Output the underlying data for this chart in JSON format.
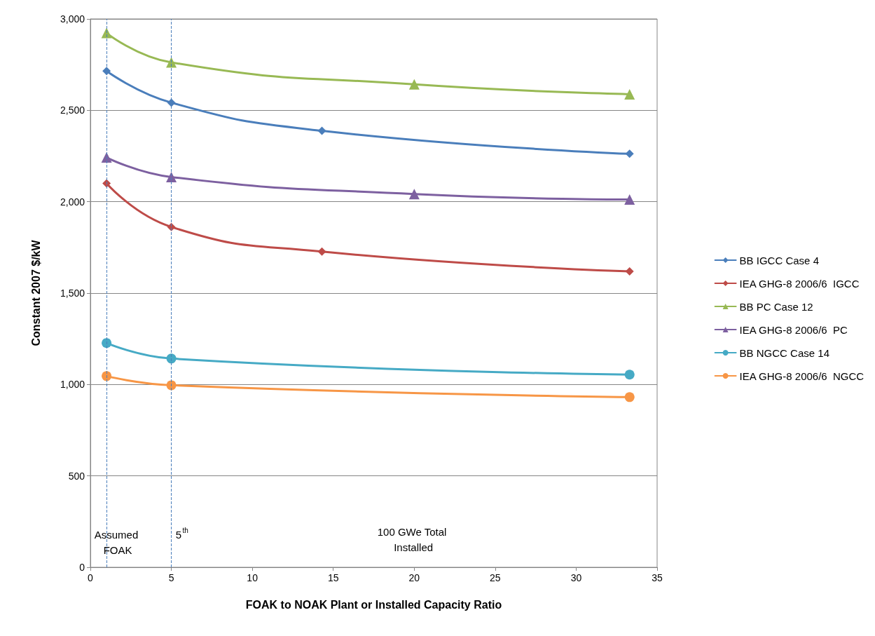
{
  "chart_data": {
    "type": "line",
    "xlabel": "FOAK to NOAK Plant or Installed Capacity Ratio",
    "ylabel": "Constant 2007 $/kW",
    "xlim": [
      0,
      35
    ],
    "xticks": [
      0,
      5,
      10,
      15,
      20,
      25,
      30,
      35
    ],
    "ylim": [
      0,
      3000
    ],
    "yticks": [
      {
        "value": 0,
        "label": "0"
      },
      {
        "value": 500,
        "label": "500"
      },
      {
        "value": 1000,
        "label": "1,000"
      },
      {
        "value": 1500,
        "label": "1,500"
      },
      {
        "value": 2000,
        "label": "2,000"
      },
      {
        "value": 2500,
        "label": "2,500"
      },
      {
        "value": 3000,
        "label": "3,000"
      }
    ],
    "grid": "y",
    "legend": "right",
    "series": [
      {
        "name": "BB IGCC Case 4",
        "color": "#4a7ebb",
        "marker": "diamond",
        "x": [
          1,
          5,
          14.3,
          33.3
        ],
        "values": [
          2715,
          2542,
          2388,
          2262
        ]
      },
      {
        "name": "IEA GHG-8 2006/6  IGCC",
        "color": "#be4b48",
        "marker": "diamond",
        "x": [
          1,
          5,
          14.3,
          33.3
        ],
        "values": [
          2100,
          1862,
          1727,
          1619
        ]
      },
      {
        "name": "BB PC Case 12",
        "color": "#98b954",
        "marker": "triangle",
        "x": [
          1,
          5,
          20,
          33.3
        ],
        "values": [
          2923,
          2762,
          2642,
          2588
        ]
      },
      {
        "name": "IEA GHG-8 2006/6  PC",
        "color": "#7d60a0",
        "marker": "triangle",
        "x": [
          1,
          5,
          20,
          33.3
        ],
        "values": [
          2242,
          2135,
          2042,
          2012
        ]
      },
      {
        "name": "BB NGCC Case 14",
        "color": "#46aac5",
        "marker": "circle",
        "x": [
          1,
          5,
          33.3
        ],
        "values": [
          1227,
          1142,
          1054
        ]
      },
      {
        "name": "IEA GHG-8 2006/6  NGCC",
        "color": "#f79646",
        "marker": "circle",
        "x": [
          1,
          5,
          33.3
        ],
        "values": [
          1046,
          996,
          931
        ]
      }
    ],
    "ref_lines": [
      {
        "axis": "x",
        "value": 1,
        "label": "Assumed FOAK",
        "color": "#4a7ebb",
        "line_style": "dashed"
      },
      {
        "axis": "x",
        "value": 5,
        "label": "5$^{th}$",
        "color": "#4a7ebb",
        "line_style": "dashed"
      }
    ],
    "annotations": [
      "100 GWe Total Installed"
    ]
  }
}
